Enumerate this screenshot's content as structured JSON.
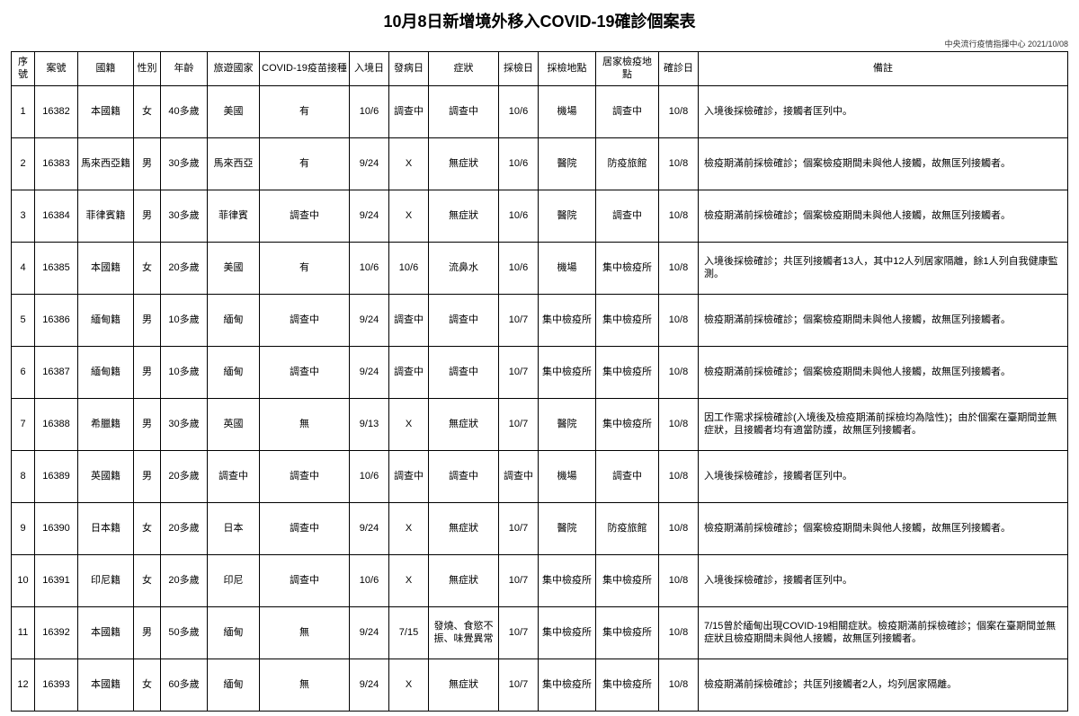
{
  "title": "10月8日新增境外移入COVID-19確診個案表",
  "source": "中央流行疫情指揮中心 2021/10/08",
  "columns": [
    {
      "label": "序號",
      "cls": "col-seq"
    },
    {
      "label": "案號",
      "cls": "col-case"
    },
    {
      "label": "國籍",
      "cls": "col-nat"
    },
    {
      "label": "性別",
      "cls": "col-sex"
    },
    {
      "label": "年齡",
      "cls": "col-age"
    },
    {
      "label": "旅遊國家",
      "cls": "col-travel"
    },
    {
      "label": "COVID-19疫苗接種",
      "cls": "col-vaccine"
    },
    {
      "label": "入境日",
      "cls": "col-entry"
    },
    {
      "label": "發病日",
      "cls": "col-onset"
    },
    {
      "label": "症狀",
      "cls": "col-symptom"
    },
    {
      "label": "採檢日",
      "cls": "col-tdate"
    },
    {
      "label": "採檢地點",
      "cls": "col-tloc"
    },
    {
      "label": "居家檢疫地點",
      "cls": "col-qloc"
    },
    {
      "label": "確診日",
      "cls": "col-conf"
    },
    {
      "label": "備註",
      "cls": "col-remark"
    }
  ],
  "rows": [
    [
      "1",
      "16382",
      "本國籍",
      "女",
      "40多歲",
      "美國",
      "有",
      "10/6",
      "調查中",
      "調查中",
      "10/6",
      "機場",
      "調查中",
      "10/8",
      "入境後採檢確診，接觸者匡列中。"
    ],
    [
      "2",
      "16383",
      "馬來西亞籍",
      "男",
      "30多歲",
      "馬來西亞",
      "有",
      "9/24",
      "X",
      "無症狀",
      "10/6",
      "醫院",
      "防疫旅館",
      "10/8",
      "檢疫期滿前採檢確診；個案檢疫期間未與他人接觸，故無匡列接觸者。"
    ],
    [
      "3",
      "16384",
      "菲律賓籍",
      "男",
      "30多歲",
      "菲律賓",
      "調查中",
      "9/24",
      "X",
      "無症狀",
      "10/6",
      "醫院",
      "調查中",
      "10/8",
      "檢疫期滿前採檢確診；個案檢疫期間未與他人接觸，故無匡列接觸者。"
    ],
    [
      "4",
      "16385",
      "本國籍",
      "女",
      "20多歲",
      "美國",
      "有",
      "10/6",
      "10/6",
      "流鼻水",
      "10/6",
      "機場",
      "集中檢疫所",
      "10/8",
      "入境後採檢確診；共匡列接觸者13人，其中12人列居家隔離，餘1人列自我健康監測。"
    ],
    [
      "5",
      "16386",
      "緬甸籍",
      "男",
      "10多歲",
      "緬甸",
      "調查中",
      "9/24",
      "調查中",
      "調查中",
      "10/7",
      "集中檢疫所",
      "集中檢疫所",
      "10/8",
      "檢疫期滿前採檢確診；個案檢疫期間未與他人接觸，故無匡列接觸者。"
    ],
    [
      "6",
      "16387",
      "緬甸籍",
      "男",
      "10多歲",
      "緬甸",
      "調查中",
      "9/24",
      "調查中",
      "調查中",
      "10/7",
      "集中檢疫所",
      "集中檢疫所",
      "10/8",
      "檢疫期滿前採檢確診；個案檢疫期間未與他人接觸，故無匡列接觸者。"
    ],
    [
      "7",
      "16388",
      "希臘籍",
      "男",
      "30多歲",
      "英國",
      "無",
      "9/13",
      "X",
      "無症狀",
      "10/7",
      "醫院",
      "集中檢疫所",
      "10/8",
      "因工作需求採檢確診(入境後及檢疫期滿前採檢均為陰性)；由於個案在臺期間並無症狀，且接觸者均有適當防護，故無匡列接觸者。"
    ],
    [
      "8",
      "16389",
      "英國籍",
      "男",
      "20多歲",
      "調查中",
      "調查中",
      "10/6",
      "調查中",
      "調查中",
      "調查中",
      "機場",
      "調查中",
      "10/8",
      "入境後採檢確診，接觸者匡列中。"
    ],
    [
      "9",
      "16390",
      "日本籍",
      "女",
      "20多歲",
      "日本",
      "調查中",
      "9/24",
      "X",
      "無症狀",
      "10/7",
      "醫院",
      "防疫旅館",
      "10/8",
      "檢疫期滿前採檢確診；個案檢疫期間未與他人接觸，故無匡列接觸者。"
    ],
    [
      "10",
      "16391",
      "印尼籍",
      "女",
      "20多歲",
      "印尼",
      "調查中",
      "10/6",
      "X",
      "無症狀",
      "10/7",
      "集中檢疫所",
      "集中檢疫所",
      "10/8",
      "入境後採檢確診，接觸者匡列中。"
    ],
    [
      "11",
      "16392",
      "本國籍",
      "男",
      "50多歲",
      "緬甸",
      "無",
      "9/24",
      "7/15",
      "發燒、食慾不振、味覺異常",
      "10/7",
      "集中檢疫所",
      "集中檢疫所",
      "10/8",
      "7/15曾於緬甸出現COVID-19相關症狀。檢疫期滿前採檢確診；個案在臺期間並無症狀且檢疫期間未與他人接觸，故無匡列接觸者。"
    ],
    [
      "12",
      "16393",
      "本國籍",
      "女",
      "60多歲",
      "緬甸",
      "無",
      "9/24",
      "X",
      "無症狀",
      "10/7",
      "集中檢疫所",
      "集中檢疫所",
      "10/8",
      "檢疫期滿前採檢確診；共匡列接觸者2人，均列居家隔離。"
    ]
  ]
}
